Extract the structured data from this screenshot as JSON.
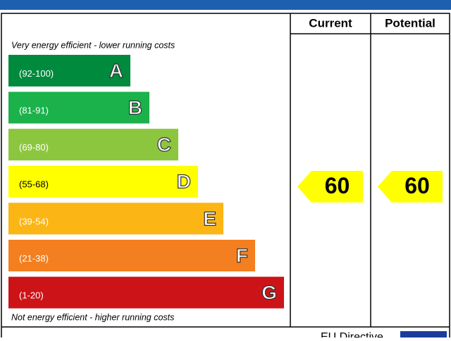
{
  "header": {
    "current": "Current",
    "potential": "Potential"
  },
  "top_note": "Very energy efficient - lower running costs",
  "bottom_note": "Not energy efficient - higher running costs",
  "bands": [
    {
      "range": "(92-100)",
      "letter": "A",
      "color": "#008a3e"
    },
    {
      "range": "(81-91)",
      "letter": "B",
      "color": "#1bb24b"
    },
    {
      "range": "(69-80)",
      "letter": "C",
      "color": "#8cc63f"
    },
    {
      "range": "(55-68)",
      "letter": "D",
      "color": "#ffff00"
    },
    {
      "range": "(39-54)",
      "letter": "E",
      "color": "#fbb515"
    },
    {
      "range": "(21-38)",
      "letter": "F",
      "color": "#f47f20"
    },
    {
      "range": "(1-20)",
      "letter": "G",
      "color": "#cc1418"
    }
  ],
  "current": {
    "value": 60,
    "color": "#ffff00"
  },
  "potential": {
    "value": 60,
    "color": "#ffff00"
  },
  "footer": "EU Directive"
}
